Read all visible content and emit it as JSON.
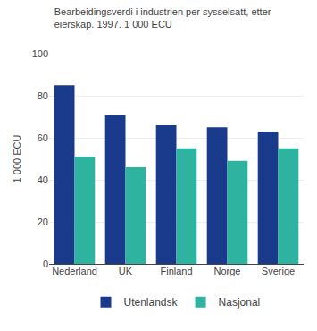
{
  "chart_data": {
    "type": "bar",
    "title": "Bearbeidingsverdi i industrien per sysselsatt, etter\neierskap. 1997. 1 000 ECU",
    "ylabel": "1 000 ECU",
    "categories": [
      "Nederland",
      "UK",
      "Finland",
      "Norge",
      "Sverige"
    ],
    "series": [
      {
        "name": "Utenlandsk",
        "color": "#1a3a8c",
        "values": [
          85,
          71,
          66,
          65,
          63
        ]
      },
      {
        "name": "Nasjonal",
        "color": "#2db3a0",
        "values": [
          51,
          46,
          55,
          49,
          55
        ]
      }
    ],
    "ylim": [
      0,
      100
    ],
    "yticks": [
      0,
      20,
      40,
      60,
      80,
      100
    ],
    "grid": true,
    "legend": "bottom"
  }
}
